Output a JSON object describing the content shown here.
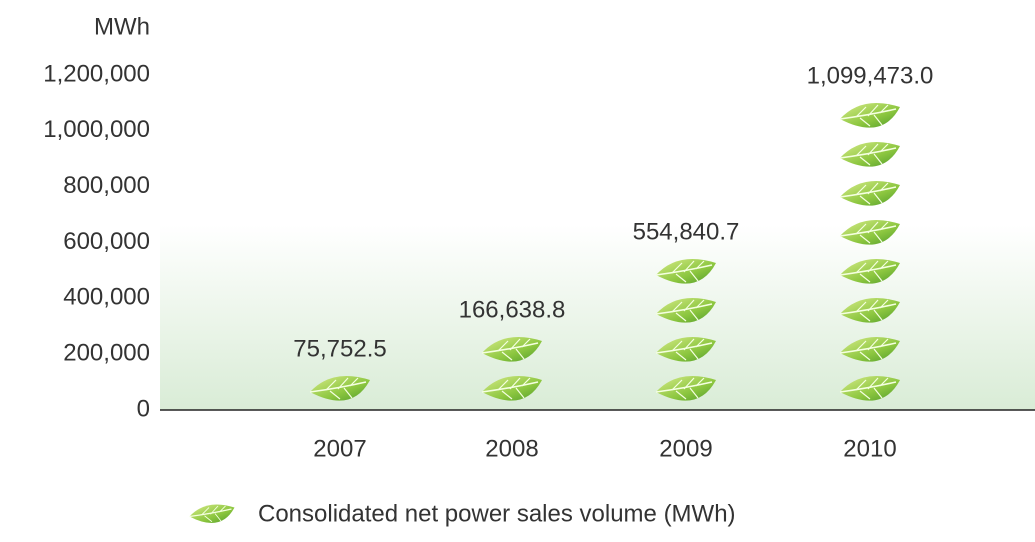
{
  "chart_data": {
    "type": "pictograph",
    "y_label": "MWh",
    "categories": [
      "2007",
      "2008",
      "2009",
      "2010"
    ],
    "series": [
      {
        "name": "Consolidated net power sales volume (MWh)",
        "color": "#8cc63f",
        "values": [
          75752.5,
          166638.8,
          554840.7,
          1099473.0
        ],
        "value_labels": [
          "75,752.5",
          "166,638.8",
          "554,840.7",
          "1,099,473.0"
        ]
      }
    ],
    "ylim": [
      0,
      1200000
    ],
    "yticks": [
      0,
      {
        "value": 200000,
        "label": "200,000"
      },
      {
        "value": 400000,
        "label": "400,000"
      },
      {
        "value": 600000,
        "label": "600,000"
      },
      {
        "value": 800000,
        "label": "800,000"
      },
      {
        "value": 1000000,
        "label": "1,000,000"
      },
      {
        "value": 1200000,
        "label": "1,200,000"
      }
    ]
  }
}
